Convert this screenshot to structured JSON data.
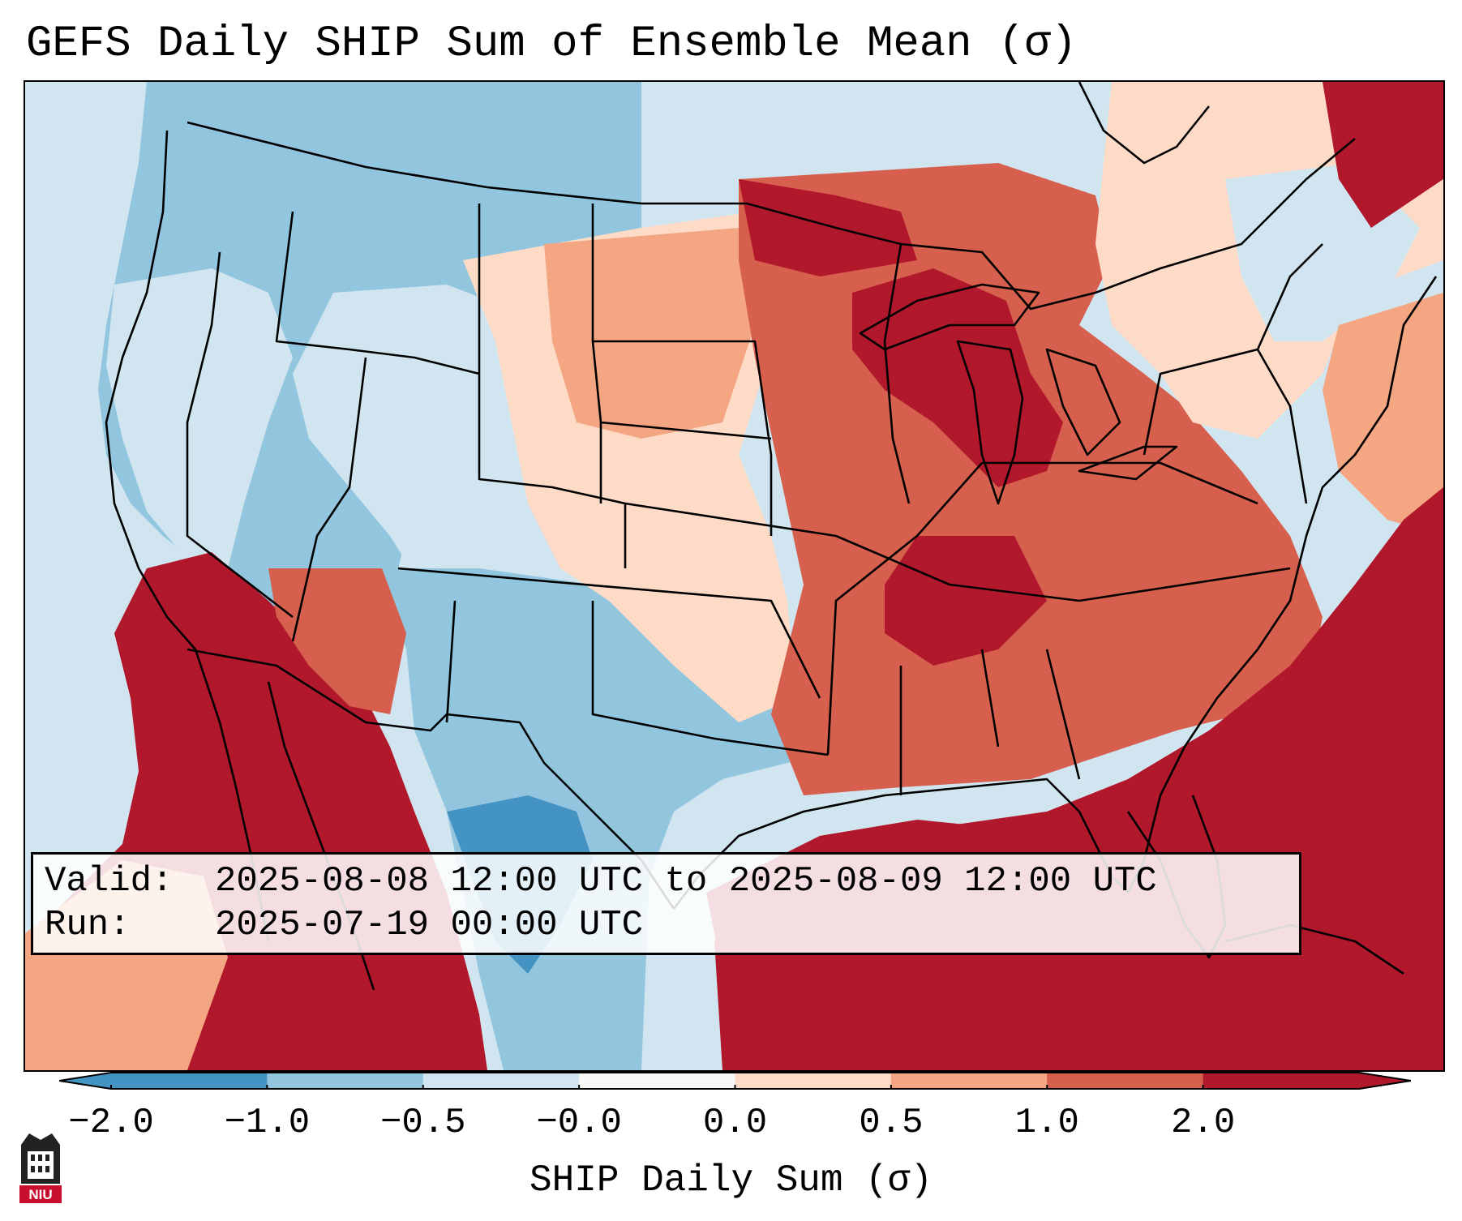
{
  "title": "GEFS Daily SHIP Sum of Ensemble Mean (σ)",
  "info": {
    "valid_label": "Valid:",
    "valid_value": "2025-08-08 12:00 UTC to 2025-08-09 12:00 UTC",
    "run_label": "Run:",
    "run_value": "2025-07-19 00:00 UTC"
  },
  "colorbar": {
    "label": "SHIP Daily Sum (σ)",
    "ticks": [
      "−2.0",
      "−1.0",
      "−0.5",
      "−0.0",
      "0.0",
      "0.5",
      "1.0",
      "2.0"
    ],
    "extend": "both",
    "bins": [
      {
        "color": "#4393c3"
      },
      {
        "color": "#92c5de"
      },
      {
        "color": "#d1e5f0"
      },
      {
        "color": "#f7f7f7"
      },
      {
        "color": "#fddbc7"
      },
      {
        "color": "#f4a582"
      },
      {
        "color": "#d6604d"
      },
      {
        "color": "#b2182b"
      }
    ]
  },
  "map": {
    "projection": "lambert-conformal",
    "region": "contiguous-united-states",
    "borders": [
      "state-borders",
      "country-borders",
      "coastlines"
    ],
    "field_colors": {
      "strong_negative": "#4393c3",
      "negative": "#92c5de",
      "weak_negative": "#d1e5f0",
      "weak_positive": "#fddbc7",
      "positive": "#f4a582",
      "strong_positive": "#d6604d",
      "extreme_positive": "#b2182b",
      "ocean_nodata": "#d1e5f0"
    }
  },
  "logo": {
    "name": "university-seal-logo",
    "text": "NIU"
  }
}
